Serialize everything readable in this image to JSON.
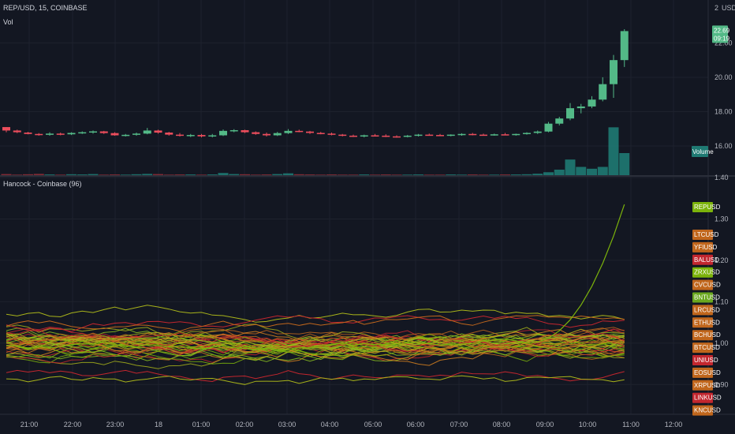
{
  "chart_data": [
    {
      "type": "candlestick",
      "title": "REP/USD, 15, COINBASE",
      "indicator": "Vol",
      "currency_label": "USD",
      "ylim": [
        14.3,
        24.5
      ],
      "y_ticks": [
        "16.00",
        "18.00",
        "20.00",
        "22.00"
      ],
      "top_tick": "2",
      "last_price": "22.69",
      "countdown": "09:19",
      "volume_label": "Volume",
      "x_labels": [
        "21:00",
        "22:00",
        "23:00",
        "18",
        "01:00",
        "02:00",
        "03:00",
        "04:00",
        "05:00",
        "06:00",
        "07:00",
        "08:00",
        "09:00",
        "10:00",
        "11:00",
        "12:00"
      ],
      "candles": [
        {
          "o": 17.1,
          "h": 17.1,
          "l": 16.8,
          "c": 16.9
        },
        {
          "o": 16.9,
          "h": 16.95,
          "l": 16.75,
          "c": 16.8
        },
        {
          "o": 16.78,
          "h": 16.82,
          "l": 16.68,
          "c": 16.7
        },
        {
          "o": 16.7,
          "h": 16.75,
          "l": 16.6,
          "c": 16.65
        },
        {
          "o": 16.65,
          "h": 16.8,
          "l": 16.6,
          "c": 16.72
        },
        {
          "o": 16.72,
          "h": 16.78,
          "l": 16.62,
          "c": 16.68
        },
        {
          "o": 16.68,
          "h": 16.8,
          "l": 16.64,
          "c": 16.76
        },
        {
          "o": 16.76,
          "h": 16.85,
          "l": 16.7,
          "c": 16.8
        },
        {
          "o": 16.8,
          "h": 16.9,
          "l": 16.72,
          "c": 16.85
        },
        {
          "o": 16.85,
          "h": 16.88,
          "l": 16.7,
          "c": 16.75
        },
        {
          "o": 16.75,
          "h": 16.8,
          "l": 16.6,
          "c": 16.62
        },
        {
          "o": 16.62,
          "h": 16.7,
          "l": 16.55,
          "c": 16.65
        },
        {
          "o": 16.65,
          "h": 16.78,
          "l": 16.6,
          "c": 16.72
        },
        {
          "o": 16.72,
          "h": 17.05,
          "l": 16.68,
          "c": 16.9
        },
        {
          "o": 16.9,
          "h": 16.95,
          "l": 16.72,
          "c": 16.78
        },
        {
          "o": 16.78,
          "h": 16.82,
          "l": 16.6,
          "c": 16.66
        },
        {
          "o": 16.66,
          "h": 16.75,
          "l": 16.55,
          "c": 16.6
        },
        {
          "o": 16.6,
          "h": 16.7,
          "l": 16.52,
          "c": 16.64
        },
        {
          "o": 16.64,
          "h": 16.7,
          "l": 16.5,
          "c": 16.56
        },
        {
          "o": 16.56,
          "h": 16.7,
          "l": 16.5,
          "c": 16.62
        },
        {
          "o": 16.62,
          "h": 16.96,
          "l": 16.58,
          "c": 16.88
        },
        {
          "o": 16.88,
          "h": 16.98,
          "l": 16.8,
          "c": 16.92
        },
        {
          "o": 16.92,
          "h": 16.95,
          "l": 16.75,
          "c": 16.8
        },
        {
          "o": 16.8,
          "h": 16.85,
          "l": 16.65,
          "c": 16.7
        },
        {
          "o": 16.7,
          "h": 16.78,
          "l": 16.55,
          "c": 16.62
        },
        {
          "o": 16.62,
          "h": 16.82,
          "l": 16.58,
          "c": 16.75
        },
        {
          "o": 16.75,
          "h": 16.98,
          "l": 16.7,
          "c": 16.88
        },
        {
          "o": 16.88,
          "h": 16.95,
          "l": 16.8,
          "c": 16.84
        },
        {
          "o": 16.84,
          "h": 16.88,
          "l": 16.7,
          "c": 16.76
        },
        {
          "o": 16.76,
          "h": 16.82,
          "l": 16.68,
          "c": 16.72
        },
        {
          "o": 16.72,
          "h": 16.78,
          "l": 16.62,
          "c": 16.66
        },
        {
          "o": 16.66,
          "h": 16.7,
          "l": 16.56,
          "c": 16.6
        },
        {
          "o": 16.6,
          "h": 16.66,
          "l": 16.52,
          "c": 16.58
        },
        {
          "o": 16.58,
          "h": 16.66,
          "l": 16.5,
          "c": 16.62
        },
        {
          "o": 16.62,
          "h": 16.7,
          "l": 16.55,
          "c": 16.6
        },
        {
          "o": 16.6,
          "h": 16.68,
          "l": 16.52,
          "c": 16.56
        },
        {
          "o": 16.56,
          "h": 16.62,
          "l": 16.48,
          "c": 16.54
        },
        {
          "o": 16.54,
          "h": 16.64,
          "l": 16.5,
          "c": 16.6
        },
        {
          "o": 16.6,
          "h": 16.7,
          "l": 16.55,
          "c": 16.66
        },
        {
          "o": 16.66,
          "h": 16.72,
          "l": 16.6,
          "c": 16.64
        },
        {
          "o": 16.64,
          "h": 16.7,
          "l": 16.58,
          "c": 16.62
        },
        {
          "o": 16.62,
          "h": 16.68,
          "l": 16.56,
          "c": 16.66
        },
        {
          "o": 16.66,
          "h": 16.74,
          "l": 16.6,
          "c": 16.7
        },
        {
          "o": 16.7,
          "h": 16.76,
          "l": 16.62,
          "c": 16.66
        },
        {
          "o": 16.66,
          "h": 16.72,
          "l": 16.6,
          "c": 16.64
        },
        {
          "o": 16.64,
          "h": 16.72,
          "l": 16.6,
          "c": 16.68
        },
        {
          "o": 16.68,
          "h": 16.76,
          "l": 16.62,
          "c": 16.66
        },
        {
          "o": 16.66,
          "h": 16.72,
          "l": 16.6,
          "c": 16.7
        },
        {
          "o": 16.7,
          "h": 16.8,
          "l": 16.66,
          "c": 16.76
        },
        {
          "o": 16.76,
          "h": 16.9,
          "l": 16.7,
          "c": 16.84
        },
        {
          "o": 16.84,
          "h": 17.4,
          "l": 16.8,
          "c": 17.3
        },
        {
          "o": 17.3,
          "h": 17.7,
          "l": 17.2,
          "c": 17.6
        },
        {
          "o": 17.6,
          "h": 18.5,
          "l": 17.5,
          "c": 18.2
        },
        {
          "o": 18.2,
          "h": 18.45,
          "l": 17.9,
          "c": 18.3
        },
        {
          "o": 18.3,
          "h": 18.9,
          "l": 18.2,
          "c": 18.7
        },
        {
          "o": 18.7,
          "h": 20.0,
          "l": 18.6,
          "c": 19.6
        },
        {
          "o": 19.6,
          "h": 21.3,
          "l": 18.8,
          "c": 21.0
        },
        {
          "o": 21.0,
          "h": 22.8,
          "l": 20.6,
          "c": 22.69
        }
      ],
      "volume": [
        0.6,
        0.3,
        0.5,
        0.7,
        0.4,
        0.3,
        0.5,
        0.4,
        0.6,
        0.3,
        0.4,
        0.3,
        0.5,
        0.7,
        0.6,
        0.3,
        0.4,
        0.4,
        0.3,
        0.4,
        1.2,
        0.6,
        0.5,
        0.3,
        0.4,
        0.6,
        1.0,
        0.5,
        0.4,
        0.3,
        0.4,
        0.3,
        0.3,
        0.4,
        0.3,
        0.4,
        0.3,
        0.3,
        0.4,
        0.3,
        0.3,
        0.4,
        0.3,
        0.4,
        0.3,
        0.3,
        0.4,
        0.4,
        0.5,
        0.8,
        1.6,
        3.0,
        8.5,
        4.5,
        3.5,
        4.5,
        26.0,
        12.0
      ],
      "volume_max": 30
    },
    {
      "type": "line",
      "title": "Hancock - Coinbase (96)",
      "ylim": [
        0.83,
        1.4
      ],
      "y_ticks": [
        "0.90",
        "1.00",
        "1.10",
        "1.20",
        "1.30",
        "1.40"
      ],
      "series": [
        {
          "name": "REPUSD",
          "color": "#7cb30b"
        },
        {
          "name": "LTCUSD",
          "color": "#c0661c"
        },
        {
          "name": "YFIUSD",
          "color": "#c0661c"
        },
        {
          "name": "BALUSD",
          "color": "#c2262e"
        },
        {
          "name": "ZRXUSD",
          "color": "#7cb30b"
        },
        {
          "name": "CVCUSD",
          "color": "#c0661c"
        },
        {
          "name": "BNTUSD",
          "color": "#6aa81e"
        },
        {
          "name": "LRCUSD",
          "color": "#c0661c"
        },
        {
          "name": "ETHUSD",
          "color": "#c0661c"
        },
        {
          "name": "BCHUSD",
          "color": "#c0661c"
        },
        {
          "name": "BTCUSD",
          "color": "#c0661c"
        },
        {
          "name": "UNIUSD",
          "color": "#c2262e"
        },
        {
          "name": "EOSUSD",
          "color": "#c0661c"
        },
        {
          "name": "XRPUSD",
          "color": "#c0661c"
        },
        {
          "name": "LINKUSD",
          "color": "#c2262e"
        },
        {
          "name": "KNCUSD",
          "color": "#c0661c"
        }
      ]
    }
  ]
}
